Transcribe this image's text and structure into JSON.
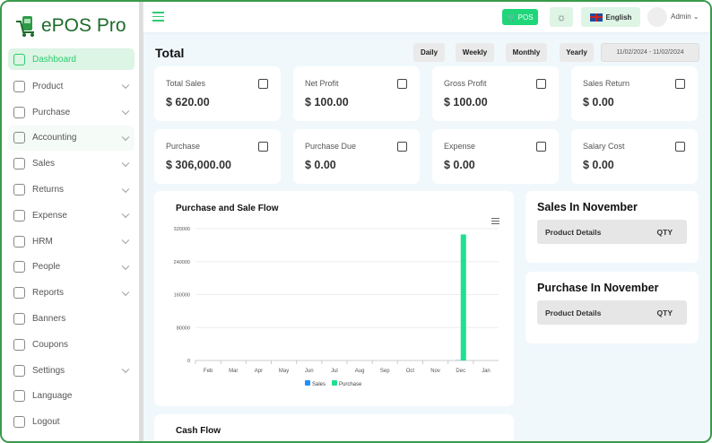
{
  "app": {
    "name": "ePOS Pro"
  },
  "sidebar": {
    "items": [
      {
        "label": "Dashboard",
        "icon": "dashboard-icon",
        "active": true,
        "chevron": false
      },
      {
        "label": "Product",
        "icon": "product-icon",
        "chevron": true
      },
      {
        "label": "Purchase",
        "icon": "purchase-icon",
        "chevron": true
      },
      {
        "label": "Accounting",
        "icon": "accounting-icon",
        "chevron": true,
        "hover": true
      },
      {
        "label": "Sales",
        "icon": "sales-icon",
        "chevron": true
      },
      {
        "label": "Returns",
        "icon": "returns-icon",
        "chevron": true
      },
      {
        "label": "Expense",
        "icon": "expense-icon",
        "chevron": true
      },
      {
        "label": "HRM",
        "icon": "hrm-icon",
        "chevron": true
      },
      {
        "label": "People",
        "icon": "people-icon",
        "chevron": true
      },
      {
        "label": "Reports",
        "icon": "reports-icon",
        "chevron": true
      },
      {
        "label": "Banners",
        "icon": "banners-icon",
        "chevron": false
      },
      {
        "label": "Coupons",
        "icon": "coupons-icon",
        "chevron": false
      },
      {
        "label": "Settings",
        "icon": "settings-icon",
        "chevron": true
      },
      {
        "label": "Language",
        "icon": "globe-icon",
        "chevron": false
      },
      {
        "label": "Logout",
        "icon": "logout-icon",
        "chevron": false
      }
    ]
  },
  "topbar": {
    "pos": "POS",
    "language": "English",
    "user": "Admin"
  },
  "total": {
    "title": "Total",
    "filters": [
      "Daily",
      "Weekly",
      "Monthly",
      "Yearly"
    ],
    "date_range": "11/02/2024 - 11/02/2024"
  },
  "cards": [
    {
      "label": "Total Sales",
      "value": "$ 620.00"
    },
    {
      "label": "Net Profit",
      "value": "$ 100.00"
    },
    {
      "label": "Gross Profit",
      "value": "$ 100.00"
    },
    {
      "label": "Sales Return",
      "value": "$ 0.00"
    },
    {
      "label": "Purchase",
      "value": "$ 306,000.00"
    },
    {
      "label": "Purchase Due",
      "value": "$ 0.00"
    },
    {
      "label": "Expense",
      "value": "$ 0.00"
    },
    {
      "label": "Salary Cost",
      "value": "$ 0.00"
    }
  ],
  "sales_nov": {
    "title": "Sales In November",
    "col1": "Product Details",
    "col2": "QTY"
  },
  "purchase_nov": {
    "title": "Purchase In November",
    "col1": "Product Details",
    "col2": "QTY"
  },
  "cashflow": {
    "title": "Cash Flow"
  },
  "chart_data": {
    "type": "bar",
    "title": "Purchase and Sale Flow",
    "categories": [
      "Feb",
      "Mar",
      "Apr",
      "May",
      "Jun",
      "Jul",
      "Aug",
      "Sep",
      "Oct",
      "Nov",
      "Dec",
      "Jan"
    ],
    "yticks": [
      "0",
      "80000",
      "160000",
      "240000",
      "320000"
    ],
    "ylim": [
      0,
      320000
    ],
    "legend": "bottom",
    "grid": true,
    "series": [
      {
        "name": "Sales",
        "color": "#1e90ff",
        "values": [
          0,
          0,
          0,
          0,
          0,
          0,
          0,
          0,
          0,
          0,
          620,
          0
        ]
      },
      {
        "name": "Purchase",
        "color": "#1fe08f",
        "values": [
          0,
          0,
          0,
          0,
          0,
          0,
          0,
          0,
          0,
          0,
          306000,
          0
        ]
      }
    ]
  },
  "colors": {
    "accent": "#2ecc71",
    "border": "#3a9a4a"
  }
}
